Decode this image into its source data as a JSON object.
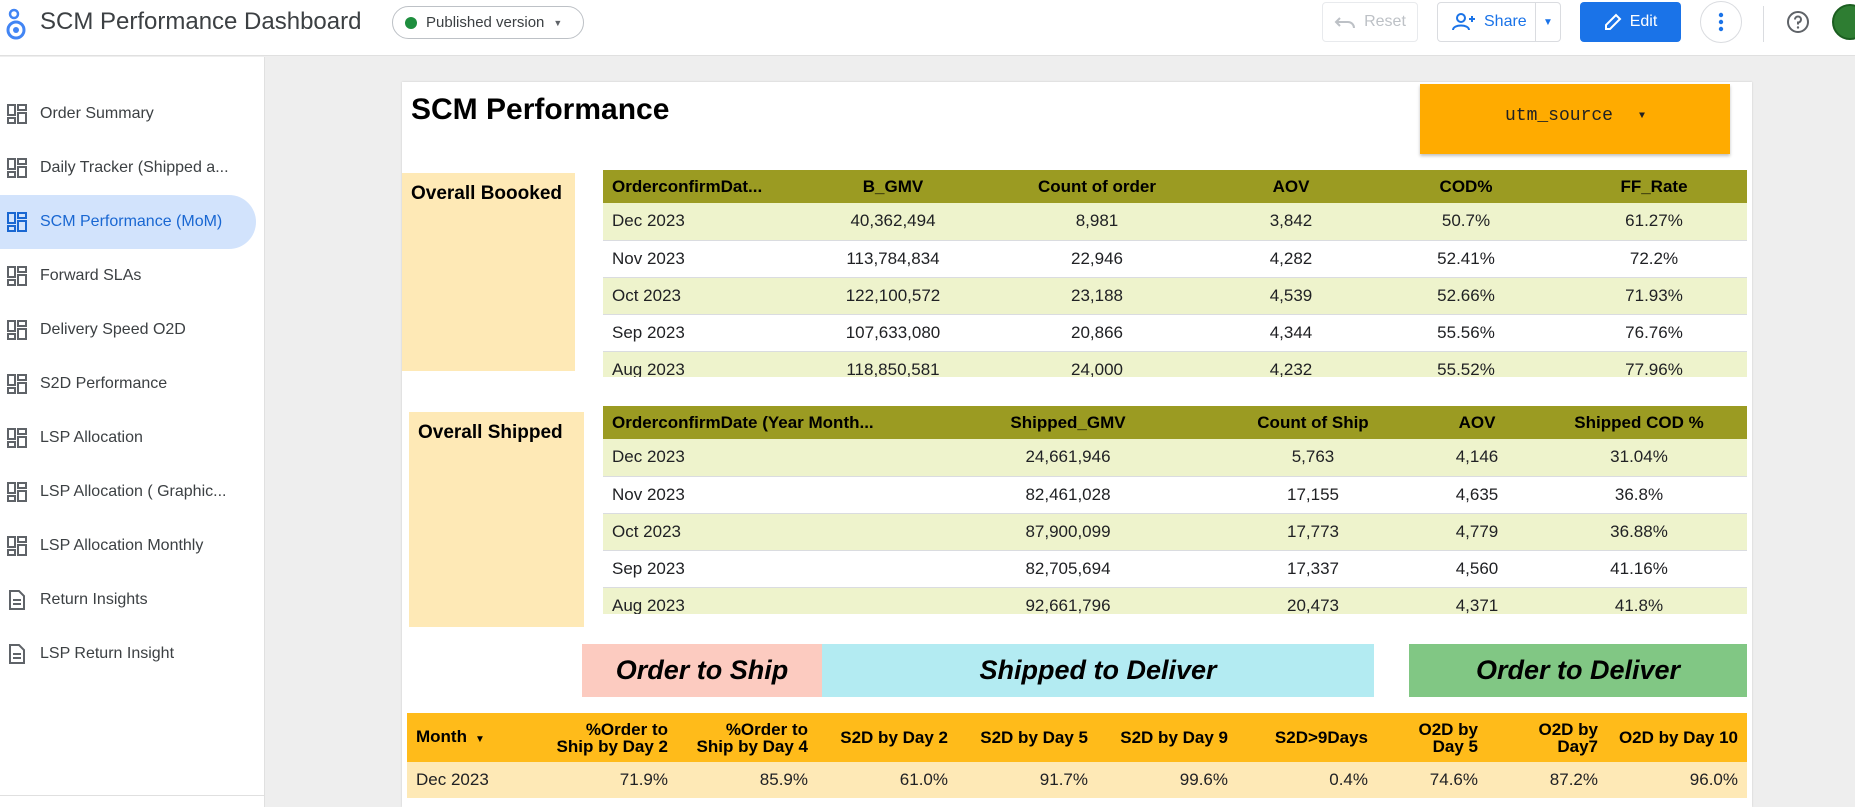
{
  "header": {
    "title": "SCM Performance Dashboard",
    "published_label": "Published version",
    "reset_label": "Reset",
    "share_label": "Share",
    "edit_label": "Edit"
  },
  "sidebar": {
    "items": [
      {
        "label": "Order Summary",
        "icon": "dashboard-icon"
      },
      {
        "label": "Daily Tracker (Shipped a...",
        "icon": "dashboard-icon"
      },
      {
        "label": "SCM Performance (MoM)",
        "icon": "dashboard-icon"
      },
      {
        "label": "Forward SLAs",
        "icon": "dashboard-icon"
      },
      {
        "label": "Delivery Speed O2D",
        "icon": "dashboard-icon"
      },
      {
        "label": "S2D Performance",
        "icon": "dashboard-icon"
      },
      {
        "label": "LSP Allocation",
        "icon": "dashboard-icon"
      },
      {
        "label": "LSP Allocation ( Graphic...",
        "icon": "dashboard-icon"
      },
      {
        "label": "LSP Allocation Monthly",
        "icon": "dashboard-icon"
      },
      {
        "label": "Return Insights",
        "icon": "document-icon"
      },
      {
        "label": "LSP Return Insight",
        "icon": "document-icon"
      }
    ],
    "active_index": 2
  },
  "page": {
    "title": "SCM Performance",
    "filter_label": "utm_source"
  },
  "booked": {
    "label": "Overall Boooked",
    "columns": [
      "OrderconfirmDat...",
      "B_GMV",
      "Count of order",
      "AOV",
      "COD%",
      "FF_Rate"
    ],
    "rows": [
      [
        "Dec 2023",
        "40,362,494",
        "8,981",
        "3,842",
        "50.7%",
        "61.27%"
      ],
      [
        "Nov 2023",
        "113,784,834",
        "22,946",
        "4,282",
        "52.41%",
        "72.2%"
      ],
      [
        "Oct 2023",
        "122,100,572",
        "23,188",
        "4,539",
        "52.66%",
        "71.93%"
      ],
      [
        "Sep 2023",
        "107,633,080",
        "20,866",
        "4,344",
        "55.56%",
        "76.76%"
      ],
      [
        "Aug 2023",
        "118,850,581",
        "24,000",
        "4,232",
        "55.52%",
        "77.96%"
      ]
    ]
  },
  "shipped": {
    "label": "Overall Shipped",
    "columns": [
      "OrderconfirmDate (Year Month...",
      "Shipped_GMV",
      "Count of Ship",
      "AOV",
      "Shipped COD %"
    ],
    "rows": [
      [
        "Dec 2023",
        "24,661,946",
        "5,763",
        "4,146",
        "31.04%"
      ],
      [
        "Nov 2023",
        "82,461,028",
        "17,155",
        "4,635",
        "36.8%"
      ],
      [
        "Oct 2023",
        "87,900,099",
        "17,773",
        "4,779",
        "36.88%"
      ],
      [
        "Sep 2023",
        "82,705,694",
        "17,337",
        "4,560",
        "41.16%"
      ],
      [
        "Aug 2023",
        "92,661,796",
        "20,473",
        "4,371",
        "41.8%"
      ]
    ]
  },
  "bands": {
    "order_to_ship": "Order to Ship",
    "shipped_to_deliver": "Shipped to Deliver",
    "order_to_deliver": "Order to Deliver",
    "colors": {
      "order_to_ship": "#fccbc0",
      "shipped_to_deliver": "#b3ebf2",
      "order_to_deliver": "#81c784"
    }
  },
  "sla": {
    "columns": [
      "Month",
      "%Order to Ship by Day 2",
      "%Order to Ship by Day 4",
      "S2D by Day 2",
      "S2D by Day 5",
      "S2D by Day 9",
      "S2D>9Days",
      "O2D by Day 5",
      "O2D by Day7",
      "O2D by Day 10"
    ],
    "rows": [
      [
        "Dec 2023",
        "71.9%",
        "85.9%",
        "61.0%",
        "91.7%",
        "99.6%",
        "0.4%",
        "74.6%",
        "87.2%",
        "96.0%"
      ]
    ]
  },
  "colors": {
    "accent": "#1a73e8",
    "table_header": "#9b9b22",
    "row_stripe": "#eef3cc",
    "label_fill": "#fee9b6",
    "filter_fill": "#ffab00",
    "sla_header": "#ffbb1a"
  }
}
